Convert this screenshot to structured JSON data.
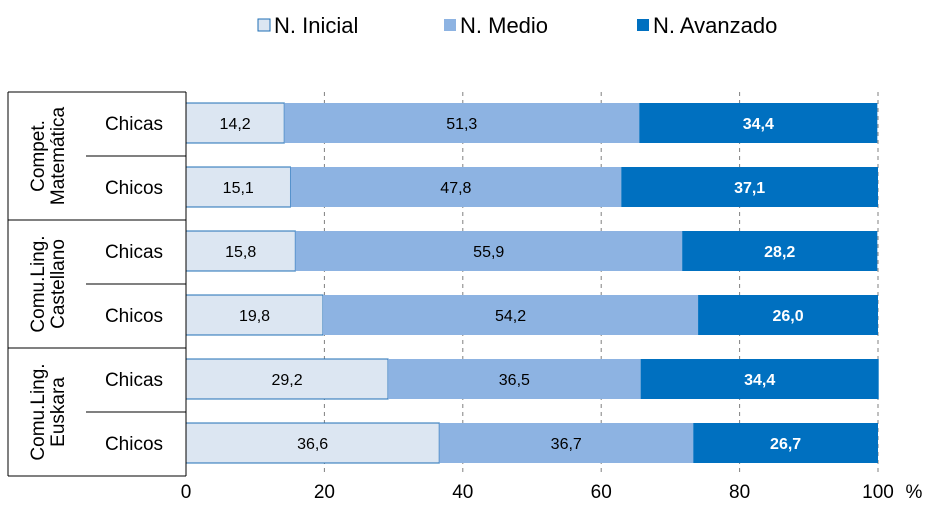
{
  "chart_data": {
    "type": "bar",
    "orientation": "horizontal",
    "stacked": true,
    "series": [
      {
        "name": "N. Inicial",
        "color": "#dce6f2",
        "values": [
          14.2,
          15.1,
          15.8,
          19.8,
          29.2,
          36.6
        ]
      },
      {
        "name": "N. Medio",
        "color": "#8db3e2",
        "values": [
          51.3,
          47.8,
          55.9,
          54.2,
          36.5,
          36.7
        ]
      },
      {
        "name": "N. Avanzado",
        "color": "#0070c0",
        "values": [
          34.4,
          37.1,
          28.2,
          26.0,
          34.4,
          26.7
        ]
      }
    ],
    "categories": [
      "Chicas",
      "Chicos",
      "Chicas",
      "Chicos",
      "Chicas",
      "Chicos"
    ],
    "groups": [
      {
        "label_lines": [
          "Compet.",
          "Matemática"
        ],
        "rows": [
          0,
          1
        ]
      },
      {
        "label_lines": [
          "Comu.Ling.",
          "Castellano"
        ],
        "rows": [
          2,
          3
        ]
      },
      {
        "label_lines": [
          "Comu.Ling.",
          "Euskara"
        ],
        "rows": [
          4,
          5
        ]
      }
    ],
    "data_labels": [
      [
        "14,2",
        "51,3",
        "34,4"
      ],
      [
        "15,1",
        "47,8",
        "37,1"
      ],
      [
        "15,8",
        "55,9",
        "28,2"
      ],
      [
        "19,8",
        "54,2",
        "26,0"
      ],
      [
        "29,2",
        "36,5",
        "34,4"
      ],
      [
        "36,6",
        "36,7",
        "26,7"
      ]
    ],
    "x_ticks": [
      "0",
      "20",
      "40",
      "60",
      "80",
      "100"
    ],
    "xlim": [
      0,
      100
    ],
    "xunit": "%",
    "legend_position": "top",
    "gridlines": "vertical dashed"
  }
}
